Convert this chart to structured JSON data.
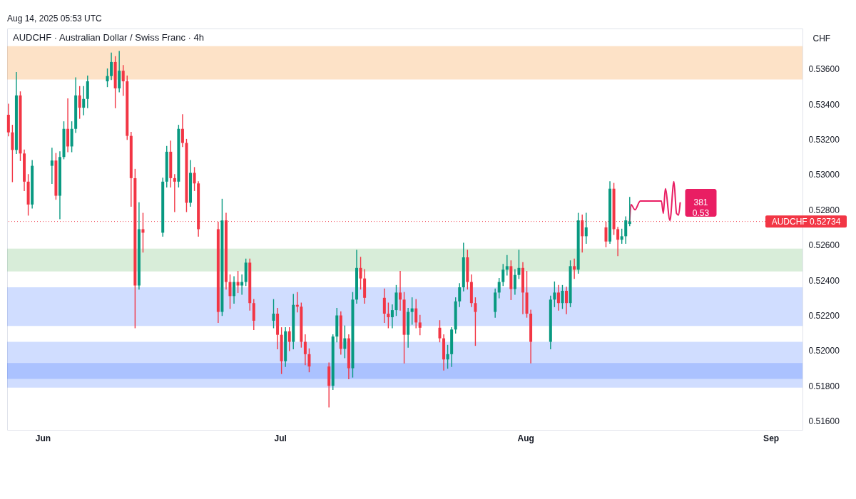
{
  "chart_data": {
    "type": "candlestick",
    "title": "AUDCHF · Australian Dollar / Swiss Franc · 4h",
    "ylabel": "CHF",
    "x": [
      "2025-05-27T16:00",
      "2025-05-28T04:00",
      "2025-05-28T16:00",
      "2025-05-29T04:00",
      "2025-05-29T16:00",
      "2025-05-30T04:00",
      "2025-05-30T16:00",
      "2025-06-02T04:00",
      "2025-06-02T16:00",
      "2025-06-03T04:00",
      "2025-06-03T16:00",
      "2025-06-04T04:00",
      "2025-06-04T16:00",
      "2025-06-05T04:00",
      "2025-06-05T16:00",
      "2025-06-06T04:00",
      "2025-06-06T16:00",
      "2025-06-09T04:00",
      "2025-06-09T16:00",
      "2025-06-10T04:00",
      "2025-06-10T16:00",
      "2025-06-11T04:00",
      "2025-06-11T16:00",
      "2025-06-12T04:00",
      "2025-06-12T16:00",
      "2025-06-13T04:00",
      "2025-06-13T16:00",
      "2025-06-16T04:00",
      "2025-06-16T16:00",
      "2025-06-17T04:00",
      "2025-06-17T16:00",
      "2025-06-18T04:00",
      "2025-06-18T16:00",
      "2025-06-19T04:00",
      "2025-06-19T16:00",
      "2025-06-20T04:00",
      "2025-06-20T16:00",
      "2025-06-23T04:00",
      "2025-06-23T16:00",
      "2025-06-24T04:00",
      "2025-06-24T16:00",
      "2025-06-25T04:00",
      "2025-06-25T16:00",
      "2025-06-26T04:00",
      "2025-06-26T16:00",
      "2025-06-27T04:00",
      "2025-06-27T16:00",
      "2025-06-30T04:00",
      "2025-06-30T16:00",
      "2025-07-01T04:00",
      "2025-07-01T16:00",
      "2025-07-02T04:00",
      "2025-07-02T16:00",
      "2025-07-03T04:00",
      "2025-07-03T16:00",
      "2025-07-04T04:00",
      "2025-07-04T16:00",
      "2025-07-07T04:00",
      "2025-07-07T16:00",
      "2025-07-08T04:00",
      "2025-07-08T16:00",
      "2025-07-09T04:00",
      "2025-07-09T16:00",
      "2025-07-10T04:00",
      "2025-07-10T16:00",
      "2025-07-11T04:00",
      "2025-07-11T16:00",
      "2025-07-14T04:00",
      "2025-07-14T16:00",
      "2025-07-15T04:00",
      "2025-07-15T16:00",
      "2025-07-16T04:00",
      "2025-07-16T16:00",
      "2025-07-17T04:00",
      "2025-07-17T16:00",
      "2025-07-18T04:00",
      "2025-07-18T16:00",
      "2025-07-21T04:00",
      "2025-07-21T16:00",
      "2025-07-22T04:00",
      "2025-07-22T16:00",
      "2025-07-23T04:00",
      "2025-07-23T16:00",
      "2025-07-24T04:00",
      "2025-07-24T16:00",
      "2025-07-25T04:00",
      "2025-07-25T16:00",
      "2025-07-28T04:00",
      "2025-07-28T16:00",
      "2025-07-29T04:00",
      "2025-07-29T16:00",
      "2025-07-30T04:00",
      "2025-07-30T16:00",
      "2025-07-31T04:00",
      "2025-07-31T16:00",
      "2025-08-01T04:00",
      "2025-08-01T16:00",
      "2025-08-04T04:00",
      "2025-08-04T16:00",
      "2025-08-05T04:00",
      "2025-08-05T16:00",
      "2025-08-06T04:00",
      "2025-08-06T16:00",
      "2025-08-07T04:00",
      "2025-08-07T16:00",
      "2025-08-08T04:00",
      "2025-08-08T16:00",
      "2025-08-11T04:00",
      "2025-08-11T16:00",
      "2025-08-12T04:00",
      "2025-08-12T16:00",
      "2025-08-13T04:00",
      "2025-08-13T16:00",
      "2025-08-14T04:00"
    ],
    "ohlc": [
      [
        0.5334,
        0.534,
        0.5322,
        0.5324
      ],
      [
        0.5324,
        0.5328,
        0.5296,
        0.5314
      ],
      [
        0.5314,
        0.5358,
        0.5312,
        0.5345
      ],
      [
        0.5345,
        0.5347,
        0.5308,
        0.5312
      ],
      [
        0.5312,
        0.5314,
        0.5291,
        0.5296
      ],
      [
        0.5296,
        0.53,
        0.5277,
        0.5283
      ],
      [
        0.5283,
        0.5308,
        0.5281,
        0.5305
      ],
      [
        0.5305,
        0.5315,
        0.5295,
        0.5308
      ],
      [
        0.5308,
        0.5312,
        0.5286,
        0.5288
      ],
      [
        0.5288,
        0.5313,
        0.5275,
        0.531
      ],
      [
        0.531,
        0.533,
        0.5309,
        0.5326
      ],
      [
        0.5326,
        0.5343,
        0.5313,
        0.5316
      ],
      [
        0.5316,
        0.533,
        0.5313,
        0.5326
      ],
      [
        0.5326,
        0.5355,
        0.5324,
        0.5345
      ],
      [
        0.5345,
        0.535,
        0.5332,
        0.5338
      ],
      [
        0.5338,
        0.535,
        0.5334,
        0.5343
      ],
      [
        0.5343,
        0.5356,
        0.5338,
        0.5353
      ],
      [
        0.5353,
        0.536,
        0.535,
        0.5356
      ],
      [
        0.5356,
        0.5369,
        0.5354,
        0.5364
      ],
      [
        0.5364,
        0.5367,
        0.5338,
        0.5349
      ],
      [
        0.5349,
        0.537,
        0.5347,
        0.5359
      ],
      [
        0.5359,
        0.5362,
        0.5345,
        0.5353
      ],
      [
        0.5353,
        0.5356,
        0.532,
        0.5322
      ],
      [
        0.5322,
        0.5324,
        0.5282,
        0.5298
      ],
      [
        0.5298,
        0.5303,
        0.5213,
        0.5237
      ],
      [
        0.5237,
        0.5284,
        0.5235,
        0.5269
      ],
      [
        0.5269,
        0.5278,
        0.5256,
        0.5267
      ],
      [
        0.5267,
        0.5298,
        0.5265,
        0.5296
      ],
      [
        0.5296,
        0.5316,
        0.5293,
        0.5313
      ],
      [
        0.5313,
        0.5319,
        0.5293,
        0.5298
      ],
      [
        0.5298,
        0.53,
        0.5279,
        0.5296
      ],
      [
        0.5296,
        0.5328,
        0.5293,
        0.5326
      ],
      [
        0.5326,
        0.5334,
        0.5316,
        0.5318
      ],
      [
        0.5318,
        0.532,
        0.5279,
        0.5284
      ],
      [
        0.5284,
        0.5308,
        0.5282,
        0.5301
      ],
      [
        0.5301,
        0.5304,
        0.5291,
        0.5295
      ],
      [
        0.5295,
        0.5296,
        0.5265,
        0.5269
      ],
      [
        0.5269,
        0.5273,
        0.5216,
        0.5222
      ],
      [
        0.5222,
        0.5286,
        0.522,
        0.5274
      ],
      [
        0.5274,
        0.5278,
        0.5235,
        0.5239
      ],
      [
        0.5239,
        0.5243,
        0.5224,
        0.5231
      ],
      [
        0.5231,
        0.5242,
        0.5227,
        0.5239
      ],
      [
        0.5239,
        0.5245,
        0.5233,
        0.5237
      ],
      [
        0.5237,
        0.5243,
        0.5232,
        0.5239
      ],
      [
        0.5239,
        0.5252,
        0.5237,
        0.525
      ],
      [
        0.525,
        0.5252,
        0.5223,
        0.5227
      ],
      [
        0.5227,
        0.5229,
        0.5212,
        0.5217
      ],
      [
        0.5217,
        0.5229,
        0.5213,
        0.5221
      ],
      [
        0.5221,
        0.5224,
        0.5201,
        0.5209
      ],
      [
        0.5209,
        0.5213,
        0.5187,
        0.5194
      ],
      [
        0.5194,
        0.5213,
        0.5191,
        0.5211
      ],
      [
        0.5211,
        0.5213,
        0.52,
        0.5205
      ],
      [
        0.5205,
        0.5232,
        0.5201,
        0.5226
      ],
      [
        0.5226,
        0.5233,
        0.5222,
        0.5225
      ],
      [
        0.5225,
        0.5227,
        0.5202,
        0.5205
      ],
      [
        0.5205,
        0.5209,
        0.5192,
        0.5198
      ],
      [
        0.5198,
        0.5201,
        0.5188,
        0.5191
      ],
      [
        0.5191,
        0.5193,
        0.5168,
        0.518
      ],
      [
        0.518,
        0.5209,
        0.5178,
        0.5208
      ],
      [
        0.5208,
        0.5224,
        0.5205,
        0.522
      ],
      [
        0.522,
        0.5222,
        0.5198,
        0.5201
      ],
      [
        0.5201,
        0.5214,
        0.5196,
        0.5207
      ],
      [
        0.5207,
        0.5209,
        0.5184,
        0.519
      ],
      [
        0.519,
        0.5233,
        0.5185,
        0.5229
      ],
      [
        0.5229,
        0.5257,
        0.5227,
        0.5247
      ],
      [
        0.5247,
        0.5253,
        0.5235,
        0.5241
      ],
      [
        0.5241,
        0.5246,
        0.5227,
        0.523
      ],
      [
        0.523,
        0.5235,
        0.5216,
        0.5221
      ],
      [
        0.5221,
        0.5227,
        0.5213,
        0.5219
      ],
      [
        0.5219,
        0.5226,
        0.5213,
        0.5223
      ],
      [
        0.5223,
        0.5237,
        0.522,
        0.5233
      ],
      [
        0.5233,
        0.5245,
        0.5223,
        0.5229
      ],
      [
        0.5229,
        0.5233,
        0.5193,
        0.5209
      ],
      [
        0.5209,
        0.5224,
        0.5202,
        0.5222
      ],
      [
        0.5222,
        0.523,
        0.5215,
        0.5224
      ],
      [
        0.5224,
        0.5229,
        0.5213,
        0.5216
      ],
      [
        0.5216,
        0.522,
        0.5209,
        0.5213
      ],
      [
        0.5213,
        0.5217,
        0.5205,
        0.5207
      ],
      [
        0.5207,
        0.5209,
        0.5189,
        0.5195
      ],
      [
        0.5195,
        0.5203,
        0.519,
        0.5198
      ],
      [
        0.5198,
        0.5213,
        0.5191,
        0.5212
      ],
      [
        0.5212,
        0.523,
        0.521,
        0.5228
      ],
      [
        0.5228,
        0.5238,
        0.5225,
        0.5236
      ],
      [
        0.5236,
        0.5261,
        0.5234,
        0.5253
      ],
      [
        0.5253,
        0.5257,
        0.5235,
        0.5239
      ],
      [
        0.5239,
        0.5243,
        0.5225,
        0.5227
      ],
      [
        0.5227,
        0.523,
        0.5203,
        0.5222
      ],
      [
        0.5222,
        0.5235,
        0.5219,
        0.5233
      ],
      [
        0.5233,
        0.5241,
        0.523,
        0.5239
      ],
      [
        0.5239,
        0.5249,
        0.5237,
        0.5246
      ],
      [
        0.5246,
        0.5254,
        0.5243,
        0.5248
      ],
      [
        0.5248,
        0.5251,
        0.5229,
        0.5235
      ],
      [
        0.5235,
        0.5246,
        0.5232,
        0.5243
      ],
      [
        0.5243,
        0.5257,
        0.5241,
        0.5247
      ],
      [
        0.5247,
        0.525,
        0.5221,
        0.5233
      ],
      [
        0.5233,
        0.5245,
        0.5219,
        0.5221
      ],
      [
        0.5221,
        0.5223,
        0.5193,
        0.5205
      ],
      [
        0.5205,
        0.5231,
        0.5201,
        0.5229
      ],
      [
        0.5229,
        0.5239,
        0.5225,
        0.5233
      ],
      [
        0.5233,
        0.5237,
        0.5223,
        0.5227
      ],
      [
        0.5227,
        0.5237,
        0.5224,
        0.5234
      ],
      [
        0.5234,
        0.5236,
        0.5221,
        0.5227
      ],
      [
        0.5227,
        0.5251,
        0.5225,
        0.5248
      ],
      [
        0.5248,
        0.5252,
        0.5241,
        0.5246
      ],
      [
        0.5246,
        0.5278,
        0.5244,
        0.5274
      ],
      [
        0.5274,
        0.5277,
        0.5256,
        0.5265
      ],
      [
        0.5265,
        0.5278,
        0.5261,
        0.527
      ],
      [
        0.527,
        0.5273,
        0.5259,
        0.5262
      ],
      [
        0.5262,
        0.5296,
        0.5261,
        0.5292
      ],
      [
        0.5292,
        0.5295,
        0.5266,
        0.5269
      ],
      [
        0.5269,
        0.527,
        0.5254,
        0.5263
      ],
      [
        0.5263,
        0.5269,
        0.5261,
        0.5265
      ],
      [
        0.5265,
        0.5276,
        0.5261,
        0.5274
      ],
      [
        0.5272,
        0.5287,
        0.5271,
        0.52734
      ]
    ],
    "colors": [
      "#f23645",
      "#f23645",
      "#089981",
      "#f23645",
      "#f23645",
      "#f23645",
      "#089981",
      "#089981",
      "#f23645",
      "#089981",
      "#089981",
      "#f23645",
      "#089981",
      "#089981",
      "#f23645",
      "#089981",
      "#089981",
      "#089981",
      "#089981",
      "#f23645",
      "#089981",
      "#f23645",
      "#f23645",
      "#f23645",
      "#f23645",
      "#089981",
      "#f23645",
      "#089981",
      "#089981",
      "#f23645",
      "#f23645",
      "#089981",
      "#f23645",
      "#f23645",
      "#089981",
      "#f23645",
      "#f23645",
      "#f23645",
      "#089981",
      "#f23645",
      "#f23645",
      "#089981",
      "#f23645",
      "#089981",
      "#089981",
      "#f23645",
      "#f23645",
      "#089981",
      "#f23645",
      "#f23645",
      "#089981",
      "#f23645",
      "#089981",
      "#f23645",
      "#f23645",
      "#f23645",
      "#f23645",
      "#f23645",
      "#089981",
      "#089981",
      "#f23645",
      "#089981",
      "#f23645",
      "#089981",
      "#089981",
      "#f23645",
      "#f23645",
      "#f23645",
      "#f23645",
      "#089981",
      "#089981",
      "#f23645",
      "#f23645",
      "#089981",
      "#089981",
      "#f23645",
      "#f23645",
      "#f23645",
      "#f23645",
      "#089981",
      "#089981",
      "#089981",
      "#089981",
      "#089981",
      "#f23645",
      "#f23645",
      "#f23645",
      "#089981",
      "#089981",
      "#089981",
      "#089981",
      "#f23645",
      "#089981",
      "#089981",
      "#f23645",
      "#f23645",
      "#f23645",
      "#089981",
      "#089981",
      "#f23645",
      "#089981",
      "#f23645",
      "#089981",
      "#f23645",
      "#089981",
      "#f23645",
      "#089981",
      "#f23645",
      "#089981",
      "#f23645",
      "#f23645",
      "#089981",
      "#089981",
      "#089981"
    ],
    "series": [
      {
        "type": "line",
        "color": "#e91e63",
        "x": [
          "2025-08-14T04:00",
          "2025-08-14T08:00",
          "2025-08-14T20:00",
          "2025-08-15T12:00",
          "2025-08-18T04:00",
          "2025-08-18T10:00",
          "2025-08-18T16:00",
          "2025-08-19T06:00",
          "2025-08-19T18:00",
          "2025-08-20T02:00",
          "2025-08-20T08:00",
          "2025-08-20T13:00"
        ],
        "values": [
          0.5274,
          0.5283,
          0.528,
          0.5285,
          0.5285,
          0.5278,
          0.5292,
          0.5274,
          0.5296,
          0.5278,
          0.5277,
          0.5284
        ]
      }
    ],
    "xlim": [
      "2025-05-27T12:00",
      "2025-09-05T00:00"
    ],
    "xticks": [
      {
        "value": "2025-06-01",
        "label": "Jun"
      },
      {
        "value": "2025-07-01",
        "label": "Jul"
      },
      {
        "value": "2025-08-01",
        "label": "Aug"
      },
      {
        "value": "2025-09-01",
        "label": "Sep"
      }
    ],
    "ylim": [
      0.5155,
      0.5383
    ],
    "yticks": [
      {
        "value": 0.516,
        "label": "0.51600"
      },
      {
        "value": 0.518,
        "label": "0.51800"
      },
      {
        "value": 0.52,
        "label": "0.52000"
      },
      {
        "value": 0.522,
        "label": "0.52200"
      },
      {
        "value": 0.524,
        "label": "0.52400"
      },
      {
        "value": 0.526,
        "label": "0.52600"
      },
      {
        "value": 0.528,
        "label": "0.52800"
      },
      {
        "value": 0.53,
        "label": "0.53000"
      },
      {
        "value": 0.532,
        "label": "0.53200"
      },
      {
        "value": 0.534,
        "label": "0.53400"
      },
      {
        "value": 0.536,
        "label": "0.53600"
      }
    ],
    "grid": false,
    "ref_lines": [
      {
        "axis": "y",
        "value": 0.52734,
        "label": "AUDCHF 0.52734",
        "color": "#f23645",
        "line_style": "dotted"
      }
    ],
    "bands": [
      {
        "axis": "y",
        "from": 0.5354,
        "to": 0.5373,
        "color": "#f57c00"
      },
      {
        "axis": "y",
        "from": 0.5179,
        "to": 0.5193,
        "color": "#2962ff"
      },
      {
        "axis": "y",
        "from": 0.5184,
        "to": 0.5205,
        "color": "#2962ff"
      },
      {
        "axis": "y",
        "from": 0.5214,
        "to": 0.5236,
        "color": "#2962ff"
      },
      {
        "axis": "y",
        "from": 0.5245,
        "to": 0.5258,
        "color": "#4caf50"
      }
    ],
    "annotations": [
      "Aug 14, 2025 05:53 UTC",
      {
        "text": "381\n0.53",
        "x": "2025-08-20T13:00",
        "y": 0.5284
      }
    ]
  }
}
